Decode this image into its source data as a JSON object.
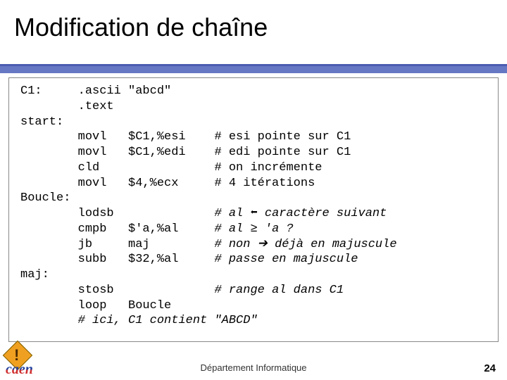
{
  "title": "Modification de chaîne",
  "footer": "Département Informatique",
  "page_number": "24",
  "logo_text": "caen",
  "code": {
    "lines": [
      {
        "label": "C1:",
        "op": ".ascii",
        "args": "\"abcd\"",
        "comment": ""
      },
      {
        "label": "",
        "op": ".text",
        "args": "",
        "comment": ""
      },
      {
        "label": "start:",
        "op": "",
        "args": "",
        "comment": ""
      },
      {
        "label": "",
        "op": "movl",
        "args": "$C1,%esi",
        "comment": "# esi pointe sur C1"
      },
      {
        "label": "",
        "op": "movl",
        "args": "$C1,%edi",
        "comment": "# edi pointe sur C1"
      },
      {
        "label": "",
        "op": "cld",
        "args": "",
        "comment": "# on incrémente"
      },
      {
        "label": "",
        "op": "movl",
        "args": "$4,%ecx",
        "comment": "# 4 itérations"
      },
      {
        "label": "Boucle:",
        "op": "",
        "args": "",
        "comment": ""
      },
      {
        "label": "",
        "op": "lodsb",
        "args": "",
        "comment": "# al ⬅ caractère suivant",
        "italic_comment": true
      },
      {
        "label": "",
        "op": "cmpb",
        "args": "$'a,%al",
        "comment": "# al ≥ 'a ?",
        "italic_comment": true
      },
      {
        "label": "",
        "op": "jb",
        "args": "maj",
        "comment": "# non ➔ déjà en majuscule",
        "italic_comment": true
      },
      {
        "label": "",
        "op": "subb",
        "args": "$32,%al",
        "comment": "# passe en majuscule",
        "italic_comment": true
      },
      {
        "label": "maj:",
        "op": "",
        "args": "",
        "comment": ""
      },
      {
        "label": "",
        "op": "stosb",
        "args": "",
        "comment": "# range al dans C1",
        "italic_comment": true
      },
      {
        "label": "",
        "op": "loop",
        "args": "Boucle",
        "comment": ""
      }
    ],
    "final_line": "# ici, C1 contient \"ABCD\"",
    "col_widths": {
      "label": 8,
      "op": 7,
      "args": 12
    }
  },
  "colors": {
    "band": "#6677c4",
    "rule": "#4a5db0"
  }
}
